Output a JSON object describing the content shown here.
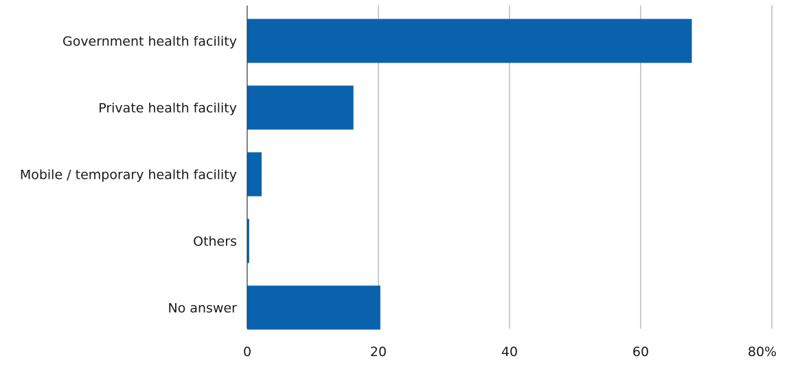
{
  "chart_data": {
    "type": "bar",
    "orientation": "horizontal",
    "categories": [
      "Government health facility",
      "Private health facility",
      "Mobile / temporary health facility",
      "Others",
      "No answer"
    ],
    "values": [
      67.8,
      16.2,
      2.2,
      0.3,
      20.3
    ],
    "xlim": [
      0,
      80
    ],
    "xticks": [
      "0",
      "20",
      "40",
      "60",
      "80%"
    ],
    "xtick_values": [
      0,
      20,
      40,
      60,
      80
    ],
    "grid": "vertical",
    "legend": "none",
    "colors": {
      "bar": "#0a62ad",
      "grid": "#9a9a9a",
      "axis": "#333333"
    }
  }
}
